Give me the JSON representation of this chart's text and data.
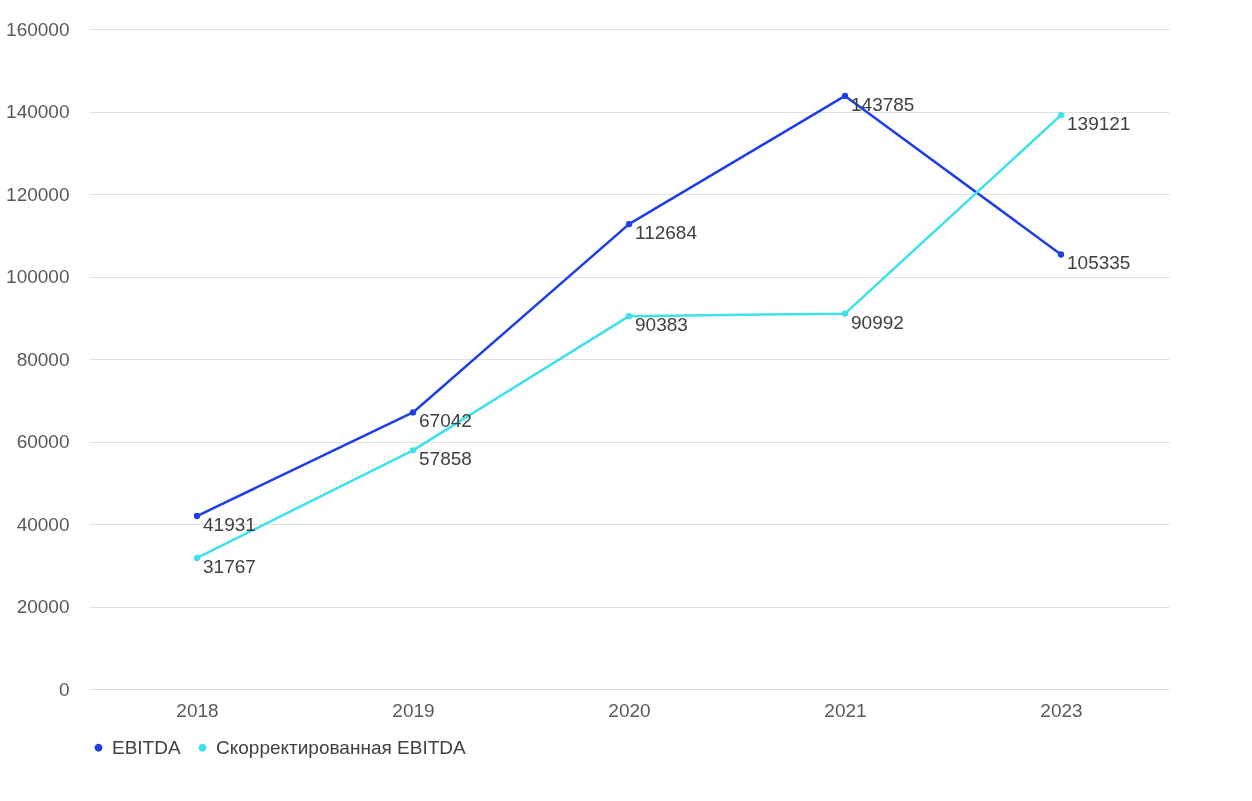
{
  "chart_data": {
    "type": "line",
    "categories": [
      "2018",
      "2019",
      "2020",
      "2021",
      "2023"
    ],
    "series": [
      {
        "name": "EBITDA",
        "color": "#1f3fe6",
        "values": [
          41931,
          67042,
          112684,
          143785,
          105335
        ]
      },
      {
        "name": "Скорректированная EBITDA",
        "color": "#3ee0ec",
        "values": [
          31767,
          57858,
          90383,
          90992,
          139121
        ]
      }
    ],
    "ylim": [
      0,
      160000
    ],
    "yticks": [
      0,
      20000,
      40000,
      60000,
      80000,
      100000,
      120000,
      140000,
      160000
    ],
    "grid": "y",
    "legend": "bottom",
    "marker": "circle",
    "line_style": "solid",
    "data_labels": true
  }
}
